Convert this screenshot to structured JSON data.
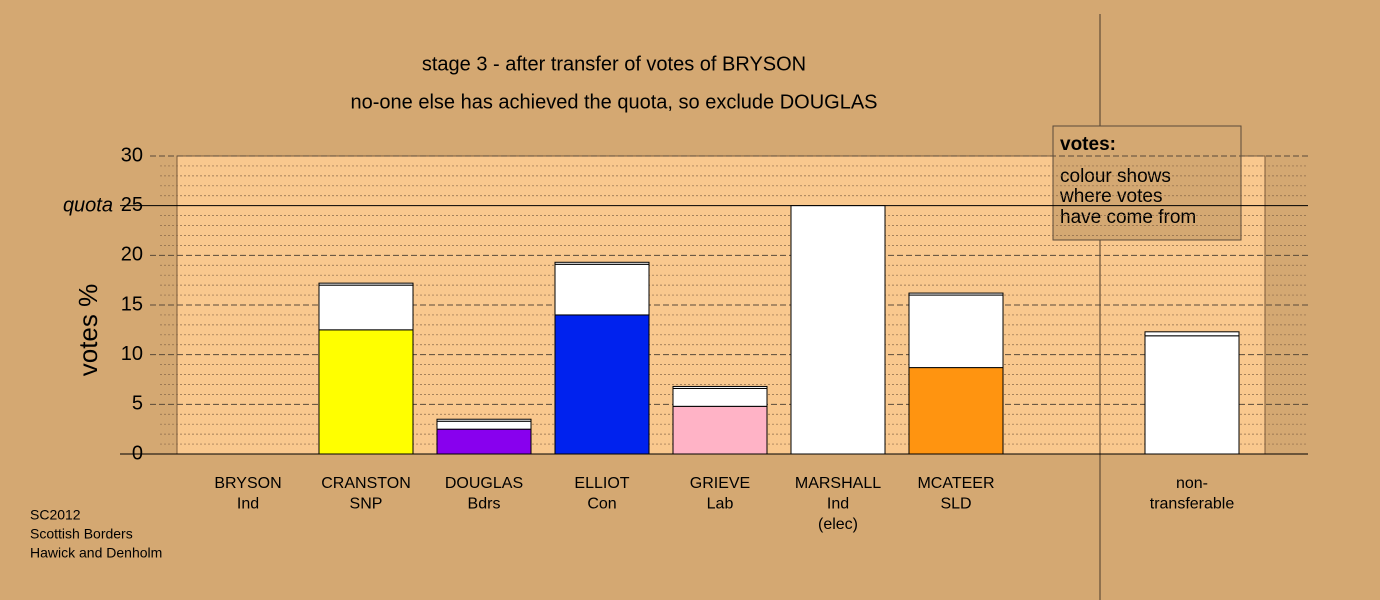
{
  "chart_data": {
    "type": "stacked-bar",
    "title": "stage 3 - after transfer of votes of BRYSON",
    "subtitle": "no-one else has achieved the quota, so exclude DOUGLAS",
    "y_label": "votes %",
    "quota_label": "quota",
    "quota": 25,
    "categories": [
      [
        "BRYSON",
        "Ind"
      ],
      [
        "CRANSTON",
        "SNP"
      ],
      [
        "DOUGLAS",
        "Bdrs"
      ],
      [
        "ELLIOT",
        "Con"
      ],
      [
        "GRIEVE",
        "Lab"
      ],
      [
        "MARSHALL",
        "Ind",
        "(elec)"
      ],
      [
        "MCATEER",
        "SLD"
      ],
      null,
      [
        "non-",
        "transferable"
      ]
    ],
    "series": [
      {
        "colors": [
          "#ffffff",
          "#ffff00",
          "#8800ee",
          "#0022ee",
          "#ffb3c6",
          "#ffffff",
          "#ff9410",
          null,
          "#ffffff"
        ],
        "values": [
          0,
          12.5,
          2.5,
          14.0,
          4.8,
          25,
          8.7,
          null,
          11.9
        ]
      },
      {
        "color": "#ffffff",
        "values": [
          0,
          4.5,
          0.8,
          5.1,
          1.8,
          0,
          7.3,
          null,
          0.4
        ]
      },
      {
        "color": "#ffffff",
        "values": [
          0,
          0.2,
          0.2,
          0.2,
          0.2,
          0,
          0.2,
          null,
          0
        ]
      }
    ],
    "ylim": [
      0,
      30
    ],
    "yticks": [
      0,
      5,
      10,
      15,
      20,
      25,
      30
    ],
    "yminor_ticks": [
      1,
      2,
      3,
      4,
      6,
      7,
      8,
      9,
      11,
      12,
      13,
      14,
      16,
      17,
      18,
      19,
      21,
      22,
      23,
      24,
      26,
      27,
      28,
      29
    ],
    "legend": {
      "title": "votes:",
      "lines": [
        "colour shows",
        "where votes",
        "have come from"
      ]
    },
    "notes": [
      "SC2012",
      "Scottish Borders",
      "Hawick and Denholm"
    ]
  }
}
